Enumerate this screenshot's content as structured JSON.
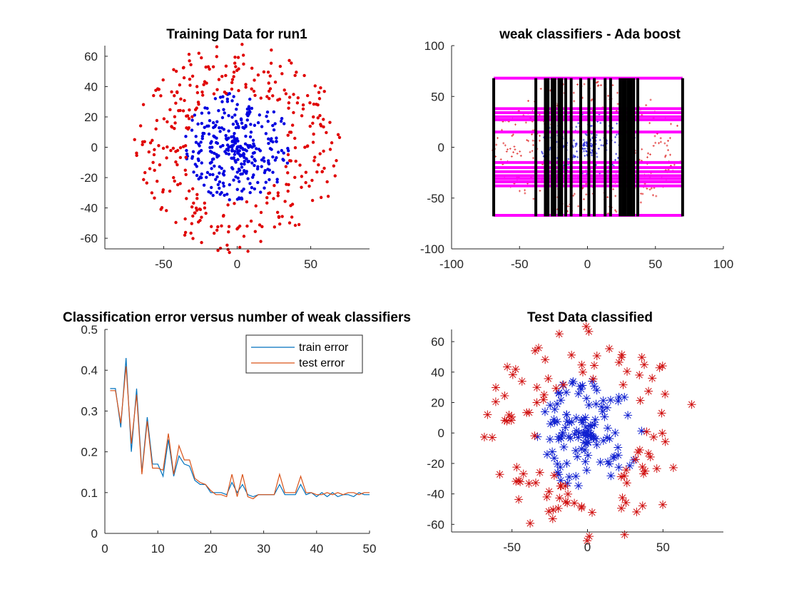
{
  "figure": {
    "background": "#ffffff"
  },
  "chart_data": [
    {
      "id": "training",
      "type": "scatter",
      "title": "Training Data for run1",
      "xlim": [
        -90,
        90
      ],
      "ylim": [
        -67,
        67
      ],
      "xticks": [
        -50,
        0,
        50
      ],
      "yticks": [
        -60,
        -40,
        -20,
        0,
        20,
        40,
        60
      ],
      "grid": false,
      "marker": "dot",
      "series": [
        {
          "color": "#0000e0",
          "class": "inner",
          "region": "radius < 35"
        },
        {
          "color": "#e00000",
          "class": "outer",
          "region": "35 < radius < 70"
        }
      ]
    },
    {
      "id": "weak",
      "type": "scatter",
      "title": "weak classifiers - Ada boost",
      "xlim": [
        -100,
        100
      ],
      "ylim": [
        -100,
        100
      ],
      "xticks": [
        -100,
        -50,
        0,
        50,
        100
      ],
      "yticks": [
        -100,
        -50,
        0,
        50,
        100
      ],
      "grid": false,
      "marker": "plus",
      "series": [
        {
          "color": "#3030e0",
          "class": "inner"
        },
        {
          "color": "#e03030",
          "class": "outer"
        }
      ],
      "vertical_thresholds": [
        -69,
        -38,
        -31,
        -29,
        -26,
        -24,
        -21,
        -19,
        -16,
        -12,
        -5,
        1,
        5,
        13,
        17,
        24,
        26,
        28,
        30,
        32,
        34,
        37,
        70
      ],
      "horizontal_thresholds": [
        -67,
        -38,
        -34,
        -31,
        -28,
        -24,
        -20,
        -15,
        15,
        27,
        30,
        34,
        38,
        68
      ],
      "vertical_color": "#000000",
      "horizontal_color": "#ff00ff",
      "x_extent": [
        -69,
        70
      ],
      "y_extent": [
        -68,
        68
      ]
    },
    {
      "id": "error",
      "type": "line",
      "title": "Classification error versus number of weak classifiers",
      "xlim": [
        0,
        50
      ],
      "ylim": [
        0,
        0.5
      ],
      "xticks": [
        0,
        10,
        20,
        30,
        40,
        50
      ],
      "yticks": [
        0,
        0.1,
        0.2,
        0.3,
        0.4,
        0.5
      ],
      "grid": false,
      "legend_position": "top-right",
      "x": [
        1,
        2,
        3,
        4,
        5,
        6,
        7,
        8,
        9,
        10,
        11,
        12,
        13,
        14,
        15,
        16,
        17,
        18,
        19,
        20,
        21,
        22,
        23,
        24,
        25,
        26,
        27,
        28,
        29,
        30,
        31,
        32,
        33,
        34,
        35,
        36,
        37,
        38,
        39,
        40,
        41,
        42,
        43,
        44,
        45,
        46,
        47,
        48,
        49,
        50
      ],
      "series": [
        {
          "name": "train error",
          "color": "#0072bd",
          "values": [
            0.355,
            0.355,
            0.26,
            0.43,
            0.2,
            0.355,
            0.15,
            0.285,
            0.17,
            0.17,
            0.14,
            0.23,
            0.14,
            0.19,
            0.17,
            0.165,
            0.13,
            0.12,
            0.12,
            0.1,
            0.1,
            0.1,
            0.095,
            0.125,
            0.1,
            0.12,
            0.095,
            0.09,
            0.095,
            0.095,
            0.095,
            0.095,
            0.12,
            0.095,
            0.095,
            0.095,
            0.12,
            0.095,
            0.1,
            0.09,
            0.1,
            0.09,
            0.1,
            0.09,
            0.095,
            0.095,
            0.09,
            0.1,
            0.095,
            0.095
          ]
        },
        {
          "name": "test error",
          "color": "#d95319",
          "values": [
            0.35,
            0.35,
            0.27,
            0.41,
            0.22,
            0.34,
            0.145,
            0.275,
            0.16,
            0.16,
            0.155,
            0.245,
            0.145,
            0.215,
            0.18,
            0.18,
            0.135,
            0.125,
            0.12,
            0.105,
            0.095,
            0.095,
            0.09,
            0.145,
            0.09,
            0.145,
            0.09,
            0.085,
            0.095,
            0.095,
            0.095,
            0.095,
            0.145,
            0.1,
            0.1,
            0.1,
            0.14,
            0.1,
            0.1,
            0.095,
            0.095,
            0.1,
            0.095,
            0.1,
            0.095,
            0.1,
            0.1,
            0.095,
            0.1,
            0.1
          ]
        }
      ]
    },
    {
      "id": "test",
      "type": "scatter",
      "title": "Test Data classified",
      "xlim": [
        -90,
        90
      ],
      "ylim": [
        -65,
        68
      ],
      "xticks": [
        -50,
        0,
        50
      ],
      "yticks": [
        -60,
        -40,
        -20,
        0,
        20,
        40,
        60
      ],
      "grid": false,
      "marker": "asterisk",
      "series": [
        {
          "color": "#1020d0",
          "class": "inner"
        },
        {
          "color": "#d01010",
          "class": "outer"
        }
      ]
    }
  ]
}
